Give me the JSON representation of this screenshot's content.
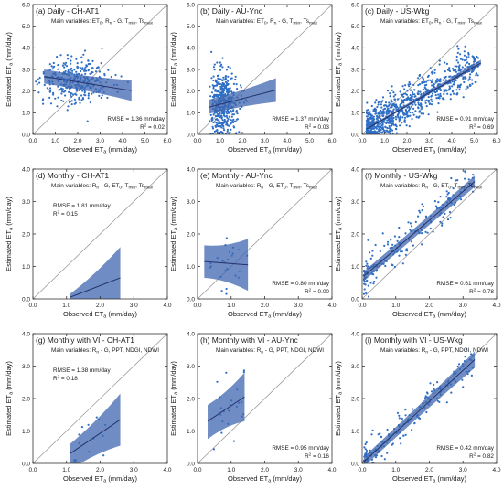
{
  "figure": {
    "xlabel_html": "Observed ET",
    "ylabel_html": "Estimated ET",
    "label_subscript": "a",
    "unit": "(mm/day)",
    "colors": {
      "points": "#2f6fc6",
      "band": "#3f67b0",
      "line": "#25336b",
      "one_to_one": "#9a9a9a",
      "frame": "#333333"
    }
  },
  "chart_data": [
    {
      "type": "scatter",
      "title": "(a) Daily - CH-AT1",
      "subtitle_parts": [
        "Main variables: ET",
        "0",
        ", R",
        "n",
        " - G, T",
        "min",
        ", Ts",
        "max"
      ],
      "rmse": "RMSE = 1.36 mm/day",
      "r2": "R2 = 0.02",
      "stats_position": "bottom-right",
      "xlim": [
        0,
        6
      ],
      "ylim": [
        0,
        6
      ],
      "xticks": [
        "0.0",
        "1.0",
        "2.0",
        "3.0",
        "4.0",
        "5.0",
        "6.0"
      ],
      "yticks": [
        "0.0",
        "1.0",
        "2.0",
        "3.0",
        "4.0",
        "5.0",
        "6.0"
      ],
      "one_to_one": true,
      "fit": {
        "x": [
          0.5,
          4.4
        ],
        "y": [
          2.68,
          2.02
        ],
        "band_lower": [
          2.35,
          1.55
        ],
        "band_upper": [
          3.0,
          2.5
        ]
      },
      "points": {
        "n": 330,
        "x_range": [
          0.4,
          4.5
        ],
        "y_center": 2.45,
        "y_spread": 0.55
      }
    },
    {
      "type": "scatter",
      "title": "(b) Daily - AU-Ync",
      "subtitle_parts": [
        "Main variables: ET",
        "0",
        ", R",
        "n",
        " - G, T",
        "min",
        ", Ts",
        "max"
      ],
      "rmse": "RMSE = 1.37 mm/day",
      "r2": "R2 = 0.03",
      "stats_position": "bottom-right",
      "xlim": [
        0,
        6
      ],
      "ylim": [
        0,
        6
      ],
      "xticks": [
        "0.0",
        "1.0",
        "2.0",
        "3.0",
        "4.0",
        "5.0",
        "6.0"
      ],
      "yticks": [
        "0.0",
        "1.0",
        "2.0",
        "3.0",
        "4.0",
        "5.0",
        "6.0"
      ],
      "one_to_one": true,
      "fit": {
        "x": [
          0.5,
          3.5
        ],
        "y": [
          1.25,
          2.05
        ],
        "band_lower": [
          0.95,
          1.5
        ],
        "band_upper": [
          1.6,
          2.6
        ]
      },
      "points": {
        "n": 420,
        "x_range": [
          0.5,
          2.2
        ],
        "y_center": 1.5,
        "y_spread": 0.8
      }
    },
    {
      "type": "scatter",
      "title": "(c) Daily - US-Wkg",
      "subtitle_parts": [
        "Main variables: ET",
        "0",
        ", R",
        "n",
        " - G, T",
        "min",
        ", Ts",
        "max"
      ],
      "rmse": "RMSE = 0.91 mm/day",
      "r2": "R2 = 0.69",
      "stats_position": "bottom-right",
      "xlim": [
        0,
        6
      ],
      "ylim": [
        0,
        6
      ],
      "xticks": [
        "0.0",
        "1.0",
        "2.0",
        "3.0",
        "4.0",
        "5.0",
        "6.0"
      ],
      "yticks": [
        "0.0",
        "1.0",
        "2.0",
        "3.0",
        "4.0",
        "5.0",
        "6.0"
      ],
      "one_to_one": true,
      "fit": {
        "x": [
          0.2,
          5.3
        ],
        "y": [
          0.25,
          3.3
        ],
        "band_lower": [
          0.2,
          3.2
        ],
        "band_upper": [
          0.3,
          3.45
        ]
      },
      "points": {
        "n": 900,
        "x_range": [
          0.2,
          5.2
        ],
        "y_center": null,
        "y_spread": 0.45
      }
    },
    {
      "type": "scatter",
      "title": "(d) Monthly - CH-AT1",
      "subtitle_parts": [
        "Main variables: R",
        "n",
        " - G, ET",
        "0",
        ", T",
        "min",
        ", Ts",
        "max"
      ],
      "rmse": "RMSE = 1.81 mm/day",
      "r2": "R2 = 0.15",
      "stats_position": "upper-left",
      "xlim": [
        0,
        4
      ],
      "ylim": [
        0,
        4
      ],
      "xticks": [
        "0.0",
        "1.0",
        "2.0",
        "3.0",
        "4.0"
      ],
      "yticks": [
        "0.0",
        "1.0",
        "2.0",
        "3.0",
        "4.0"
      ],
      "one_to_one": true,
      "fit": {
        "x": [
          1.1,
          2.6
        ],
        "y": [
          0.05,
          0.65
        ],
        "band_lower": [
          -0.3,
          -0.3
        ],
        "band_upper": [
          0.15,
          1.6
        ]
      },
      "points": {
        "n": 0,
        "x_range": [
          1.1,
          2.6
        ],
        "y_center": null,
        "y_spread": 0.1
      }
    },
    {
      "type": "scatter",
      "title": "(e) Monthly - AU-Ync",
      "subtitle_parts": [
        "Main variables: R",
        "n",
        " - G, ET",
        "0",
        ", T",
        "min",
        ", Ts",
        "max"
      ],
      "rmse": "RMSE = 0.80 mm/day",
      "r2": "R2 = 0.00",
      "stats_position": "bottom-right",
      "xlim": [
        0,
        4
      ],
      "ylim": [
        0,
        4
      ],
      "xticks": [
        "0.0",
        "1.0",
        "2.0",
        "3.0",
        "4.0"
      ],
      "yticks": [
        "0.0",
        "1.0",
        "2.0",
        "3.0",
        "4.0"
      ],
      "one_to_one": true,
      "fit": {
        "x": [
          0.2,
          1.5
        ],
        "y": [
          1.15,
          1.05
        ],
        "band_lower": [
          0.65,
          0.25
        ],
        "band_upper": [
          1.65,
          1.85
        ]
      },
      "points": {
        "n": 24,
        "x_range": [
          0.3,
          1.5
        ],
        "y_center": 1.1,
        "y_spread": 0.5
      }
    },
    {
      "type": "scatter",
      "title": "(f) Monthly - US-Wkg",
      "subtitle_parts": [
        "Main variables: R",
        "n",
        " - G, ET",
        "0",
        ", T",
        "min",
        ", Ts",
        "max"
      ],
      "rmse": "RMSE = 0.61 mm/day",
      "r2": "R2 = 0.78",
      "stats_position": "bottom-right",
      "xlim": [
        0,
        4
      ],
      "ylim": [
        0,
        4
      ],
      "xticks": [
        "0.0",
        "1.0",
        "2.0",
        "3.0",
        "4.0"
      ],
      "yticks": [
        "0.0",
        "1.0",
        "2.0",
        "3.0",
        "4.0"
      ],
      "one_to_one": true,
      "fit": {
        "x": [
          0.05,
          3.35
        ],
        "y": [
          0.7,
          3.62
        ],
        "band_lower": [
          0.55,
          3.45
        ],
        "band_upper": [
          0.85,
          3.8
        ]
      },
      "points": {
        "n": 190,
        "x_range": [
          0.05,
          3.3
        ],
        "y_center": null,
        "y_spread": 0.3
      }
    },
    {
      "type": "scatter",
      "title": "(g) Monthly with VI - CH-AT1",
      "subtitle_parts": [
        "Main variables: R",
        "n",
        " - G, PPT, NDGI, NDWI"
      ],
      "rmse": "RMSE = 1.38 mm/day",
      "r2": "R2 = 0.18",
      "stats_position": "upper-left",
      "xlim": [
        0,
        4
      ],
      "ylim": [
        0,
        4
      ],
      "xticks": [
        "0.0",
        "1.0",
        "2.0",
        "3.0",
        "4.0"
      ],
      "yticks": [
        "0.0",
        "1.0",
        "2.0",
        "3.0",
        "4.0"
      ],
      "one_to_one": true,
      "fit": {
        "x": [
          1.1,
          2.6
        ],
        "y": [
          0.3,
          1.35
        ],
        "band_lower": [
          -0.2,
          0.55
        ],
        "band_upper": [
          0.6,
          2.15
        ]
      },
      "points": {
        "n": 14,
        "x_range": [
          1.2,
          2.6
        ],
        "y_center": null,
        "y_spread": 0.5
      }
    },
    {
      "type": "scatter",
      "title": "(h) Monthly with VI - AU-Ync",
      "subtitle_parts": [
        "Main variables: R",
        "n",
        " - G, PPT, NDGI, NDWI"
      ],
      "rmse": "RMSE = 0.95 mm/day",
      "r2": "R2 = 0.16",
      "stats_position": "bottom-right",
      "xlim": [
        0,
        4
      ],
      "ylim": [
        0,
        4
      ],
      "xticks": [
        "0.0",
        "1.0",
        "2.0",
        "3.0",
        "4.0"
      ],
      "yticks": [
        "0.0",
        "1.0",
        "2.0",
        "3.0",
        "4.0"
      ],
      "one_to_one": true,
      "fit": {
        "x": [
          0.3,
          1.4
        ],
        "y": [
          1.3,
          2.05
        ],
        "band_lower": [
          0.75,
          1.3
        ],
        "band_upper": [
          1.8,
          2.8
        ]
      },
      "points": {
        "n": 22,
        "x_range": [
          0.3,
          1.4
        ],
        "y_center": null,
        "y_spread": 0.55
      }
    },
    {
      "type": "scatter",
      "title": "(i) Monthly with VI - US-Wkg",
      "subtitle_parts": [
        "Main variables: R",
        "n",
        " - G, PPT, NDGI, NDWI"
      ],
      "rmse": "RMSE = 0.42 mm/day",
      "r2": "R2 = 0.82",
      "stats_position": "bottom-right",
      "xlim": [
        0,
        4
      ],
      "ylim": [
        0,
        4
      ],
      "xticks": [
        "0.0",
        "1.0",
        "2.0",
        "3.0",
        "4.0"
      ],
      "yticks": [
        "0.0",
        "1.0",
        "2.0",
        "3.0",
        "4.0"
      ],
      "one_to_one": true,
      "fit": {
        "x": [
          0.05,
          3.35
        ],
        "y": [
          0.05,
          3.2
        ],
        "band_lower": [
          -0.1,
          2.95
        ],
        "band_upper": [
          0.2,
          3.45
        ]
      },
      "points": {
        "n": 170,
        "x_range": [
          0.05,
          3.3
        ],
        "y_center": null,
        "y_spread": 0.25
      }
    }
  ]
}
